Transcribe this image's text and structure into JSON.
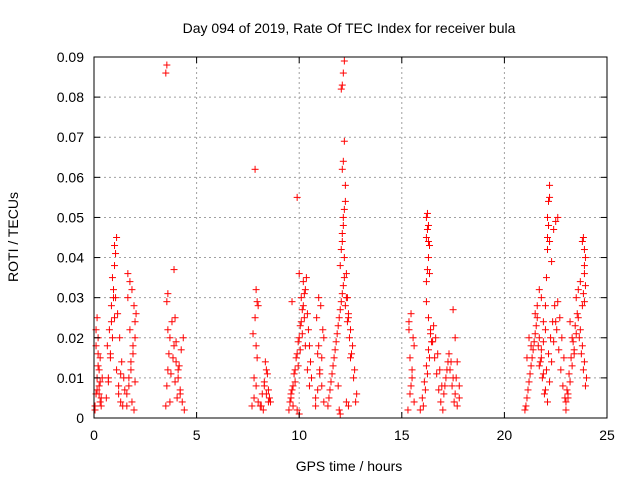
{
  "chart_data": {
    "type": "scatter",
    "title": "Day 094 of 2019, Rate Of TEC Index for receiver bula",
    "xlabel": "GPS time / hours",
    "ylabel": "ROTI / TECUs",
    "xlim": [
      0,
      25
    ],
    "ylim": [
      0,
      0.09
    ],
    "xticks": [
      "0",
      "5",
      "10",
      "15",
      "20",
      "25"
    ],
    "yticks": [
      "0",
      "0.01",
      "0.02",
      "0.03",
      "0.04",
      "0.05",
      "0.06",
      "0.07",
      "0.08",
      "0.09"
    ],
    "grid": true,
    "marker": "plus",
    "color": "#ff0000",
    "series": [
      {
        "x": [
          0.05,
          0.1,
          0.15,
          0.2,
          0.25,
          0.3,
          0.1,
          0.2,
          0.15,
          0.3,
          0.35,
          0.4,
          0.25,
          0.15,
          0.05,
          0.1,
          0.2,
          0.3,
          0.35,
          0.25,
          0.6,
          0.7,
          0.8,
          0.9,
          1.0,
          1.1,
          1.2,
          1.3,
          1.4,
          0.65,
          0.75,
          0.85,
          0.95,
          1.05,
          1.15,
          1.25,
          1.35,
          1.45,
          0.9,
          1.0,
          1.05,
          1.1,
          1.0,
          0.95,
          0.85,
          0.8,
          0.7,
          1.2,
          1.3,
          1.5,
          1.6,
          1.7,
          1.8,
          1.9,
          2.0,
          2.05,
          1.65,
          1.75,
          1.85,
          1.95,
          2.0,
          1.9,
          1.8,
          1.7,
          1.6,
          1.85,
          1.95,
          2.0,
          1.75,
          1.65,
          3.5,
          3.55,
          3.6,
          3.65,
          3.7,
          3.8,
          3.9,
          4.0,
          4.1,
          4.2,
          4.3,
          4.4,
          3.75,
          3.85,
          3.95,
          4.05,
          4.15,
          4.25,
          4.35,
          3.6,
          3.55,
          3.6,
          3.5,
          3.55,
          3.9,
          3.95,
          4.0,
          4.1,
          4.2,
          3.7,
          7.7,
          7.8,
          7.9,
          8.0,
          7.75,
          7.85,
          7.95,
          8.1,
          8.2,
          8.3,
          8.4,
          8.5,
          8.6,
          8.35,
          8.45,
          8.55,
          8.25,
          8.15,
          7.9,
          8.0,
          7.85,
          7.9,
          7.95,
          7.8,
          8.3,
          8.4,
          8.5,
          9.5,
          9.6,
          9.7,
          9.8,
          9.9,
          10.0,
          10.1,
          10.2,
          10.3,
          10.4,
          10.5,
          10.6,
          9.55,
          9.65,
          9.75,
          9.85,
          9.95,
          10.05,
          10.15,
          10.25,
          10.35,
          10.45,
          10.55,
          9.9,
          10.0,
          10.1,
          10.2,
          10.3,
          9.8,
          9.7,
          9.95,
          10.05,
          10.15,
          10.25,
          9.65,
          9.6,
          10.4,
          10.5,
          9.9,
          10.0,
          10.8,
          10.9,
          11.0,
          11.1,
          11.2,
          10.85,
          10.95,
          11.05,
          11.15,
          10.9,
          11.0,
          11.1,
          10.8,
          11.2,
          10.95,
          11.4,
          11.5,
          11.6,
          11.7,
          11.8,
          11.9,
          12.0,
          12.1,
          12.2,
          12.3,
          12.4,
          12.5,
          12.6,
          12.7,
          12.8,
          11.45,
          11.55,
          11.65,
          11.75,
          11.85,
          11.95,
          12.05,
          12.15,
          12.25,
          12.35,
          12.45,
          12.55,
          12.65,
          12.75,
          12.0,
          12.05,
          12.1,
          12.15,
          12.2,
          12.25,
          12.1,
          12.15,
          12.2,
          12.05,
          12.1,
          12.15,
          12.2,
          12.25,
          12.1,
          12.15,
          12.2,
          12.3,
          12.35,
          12.4,
          12.5,
          11.9,
          11.95,
          12.0,
          12.3,
          12.4,
          15.3,
          15.4,
          15.5,
          15.6,
          15.35,
          15.45,
          15.55,
          15.4,
          15.5,
          15.6,
          15.35,
          15.45,
          15.9,
          16.0,
          16.1,
          16.2,
          16.3,
          16.4,
          16.5,
          16.6,
          16.7,
          16.8,
          16.9,
          17.0,
          17.1,
          17.2,
          17.3,
          17.4,
          17.5,
          17.6,
          17.7,
          17.8,
          16.05,
          16.15,
          16.25,
          16.35,
          16.45,
          16.55,
          16.65,
          16.75,
          16.85,
          16.95,
          17.05,
          17.15,
          17.25,
          17.35,
          17.45,
          17.55,
          16.2,
          16.25,
          16.3,
          16.35,
          16.2,
          16.25,
          16.3,
          16.2,
          16.25,
          16.3,
          16.35,
          16.2,
          16.3,
          16.4,
          17.5,
          17.6,
          17.7,
          17.8,
          17.65,
          21.0,
          21.1,
          21.2,
          21.3,
          21.4,
          21.5,
          21.6,
          21.7,
          21.8,
          21.9,
          22.0,
          22.1,
          22.2,
          22.3,
          22.4,
          22.5,
          22.6,
          22.7,
          22.8,
          22.9,
          21.05,
          21.15,
          21.25,
          21.35,
          21.45,
          21.55,
          21.65,
          21.75,
          21.85,
          21.95,
          22.05,
          22.15,
          22.25,
          22.35,
          22.45,
          22.55,
          22.65,
          22.75,
          22.85,
          22.95,
          21.1,
          21.2,
          21.3,
          21.5,
          21.6,
          21.7,
          21.8,
          21.9,
          22.0,
          22.05,
          22.1,
          22.15,
          22.2,
          22.1,
          22.15,
          22.2,
          22.1,
          22.2,
          22.3,
          22.4,
          22.0,
          21.9,
          21.8,
          21.7,
          22.5,
          22.6,
          23.0,
          23.1,
          23.2,
          23.3,
          23.4,
          23.5,
          23.6,
          23.7,
          23.8,
          23.9,
          24.0,
          23.05,
          23.15,
          23.25,
          23.35,
          23.45,
          23.55,
          23.65,
          23.75,
          23.85,
          23.95,
          23.5,
          23.6,
          23.7,
          23.8,
          23.9,
          23.95,
          23.9,
          23.85,
          23.8,
          23.9,
          23.95,
          23.85,
          23.9,
          23.2,
          23.3,
          23.4,
          23.0,
          23.1
        ],
        "y": [
          0.003,
          0.006,
          0.01,
          0.013,
          0.008,
          0.004,
          0.018,
          0.02,
          0.025,
          0.015,
          0.005,
          0.01,
          0.012,
          0.007,
          0.002,
          0.022,
          0.016,
          0.009,
          0.003,
          0.006,
          0.005,
          0.01,
          0.015,
          0.02,
          0.025,
          0.012,
          0.008,
          0.004,
          0.003,
          0.018,
          0.022,
          0.028,
          0.032,
          0.03,
          0.026,
          0.02,
          0.014,
          0.01,
          0.035,
          0.038,
          0.041,
          0.045,
          0.043,
          0.03,
          0.024,
          0.016,
          0.009,
          0.006,
          0.011,
          0.007,
          0.003,
          0.008,
          0.012,
          0.016,
          0.02,
          0.026,
          0.03,
          0.034,
          0.032,
          0.028,
          0.024,
          0.018,
          0.014,
          0.01,
          0.006,
          0.004,
          0.002,
          0.009,
          0.022,
          0.036,
          0.003,
          0.008,
          0.012,
          0.016,
          0.02,
          0.024,
          0.018,
          0.014,
          0.01,
          0.006,
          0.004,
          0.002,
          0.011,
          0.015,
          0.009,
          0.005,
          0.013,
          0.017,
          0.02,
          0.022,
          0.029,
          0.031,
          0.086,
          0.088,
          0.037,
          0.025,
          0.019,
          0.012,
          0.007,
          0.004,
          0.003,
          0.005,
          0.008,
          0.004,
          0.021,
          0.025,
          0.029,
          0.003,
          0.006,
          0.009,
          0.012,
          0.007,
          0.004,
          0.014,
          0.011,
          0.005,
          0.002,
          0.003,
          0.032,
          0.028,
          0.062,
          0.018,
          0.015,
          0.01,
          0.008,
          0.006,
          0.004,
          0.002,
          0.005,
          0.008,
          0.012,
          0.016,
          0.02,
          0.024,
          0.028,
          0.032,
          0.026,
          0.018,
          0.01,
          0.004,
          0.007,
          0.011,
          0.015,
          0.019,
          0.023,
          0.027,
          0.031,
          0.035,
          0.022,
          0.014,
          0.055,
          0.036,
          0.03,
          0.034,
          0.018,
          0.009,
          0.003,
          0.013,
          0.017,
          0.021,
          0.025,
          0.029,
          0.006,
          0.012,
          0.008,
          0.002,
          0.001,
          0.003,
          0.007,
          0.011,
          0.015,
          0.02,
          0.025,
          0.03,
          0.028,
          0.022,
          0.016,
          0.012,
          0.008,
          0.005,
          0.004,
          0.018,
          0.003,
          0.007,
          0.011,
          0.015,
          0.019,
          0.023,
          0.027,
          0.031,
          0.035,
          0.03,
          0.026,
          0.022,
          0.018,
          0.012,
          0.006,
          0.005,
          0.009,
          0.013,
          0.017,
          0.021,
          0.025,
          0.029,
          0.033,
          0.028,
          0.024,
          0.02,
          0.016,
          0.01,
          0.004,
          0.038,
          0.042,
          0.046,
          0.05,
          0.052,
          0.058,
          0.062,
          0.064,
          0.069,
          0.082,
          0.083,
          0.086,
          0.089,
          0.054,
          0.044,
          0.048,
          0.04,
          0.036,
          0.03,
          0.025,
          0.015,
          0.008,
          0.002,
          0.001,
          0.004,
          0.003,
          0.002,
          0.006,
          0.012,
          0.018,
          0.024,
          0.026,
          0.02,
          0.015,
          0.01,
          0.004,
          0.022,
          0.008,
          0.002,
          0.005,
          0.009,
          0.013,
          0.017,
          0.021,
          0.019,
          0.015,
          0.011,
          0.007,
          0.004,
          0.002,
          0.008,
          0.012,
          0.016,
          0.014,
          0.01,
          0.006,
          0.003,
          0.005,
          0.003,
          0.007,
          0.011,
          0.015,
          0.019,
          0.023,
          0.02,
          0.016,
          0.012,
          0.008,
          0.006,
          0.01,
          0.014,
          0.012,
          0.008,
          0.004,
          0.034,
          0.037,
          0.04,
          0.043,
          0.045,
          0.047,
          0.048,
          0.05,
          0.051,
          0.044,
          0.036,
          0.029,
          0.025,
          0.022,
          0.027,
          0.02,
          0.014,
          0.008,
          0.01,
          0.002,
          0.005,
          0.009,
          0.013,
          0.017,
          0.021,
          0.025,
          0.02,
          0.015,
          0.011,
          0.007,
          0.004,
          0.009,
          0.014,
          0.019,
          0.024,
          0.029,
          0.025,
          0.02,
          0.015,
          0.003,
          0.007,
          0.011,
          0.015,
          0.019,
          0.023,
          0.018,
          0.014,
          0.01,
          0.006,
          0.012,
          0.016,
          0.02,
          0.024,
          0.028,
          0.022,
          0.017,
          0.012,
          0.008,
          0.005,
          0.015,
          0.02,
          0.018,
          0.026,
          0.028,
          0.032,
          0.03,
          0.024,
          0.028,
          0.035,
          0.05,
          0.054,
          0.058,
          0.045,
          0.048,
          0.055,
          0.042,
          0.044,
          0.039,
          0.047,
          0.022,
          0.019,
          0.017,
          0.013,
          0.049,
          0.05,
          0.002,
          0.005,
          0.009,
          0.013,
          0.017,
          0.021,
          0.025,
          0.022,
          0.018,
          0.014,
          0.01,
          0.007,
          0.011,
          0.015,
          0.019,
          0.023,
          0.026,
          0.02,
          0.016,
          0.012,
          0.008,
          0.03,
          0.032,
          0.034,
          0.028,
          0.036,
          0.04,
          0.042,
          0.045,
          0.044,
          0.038,
          0.033,
          0.031,
          0.029,
          0.024,
          0.02,
          0.016,
          0.004,
          0.006
        ]
      }
    ]
  }
}
